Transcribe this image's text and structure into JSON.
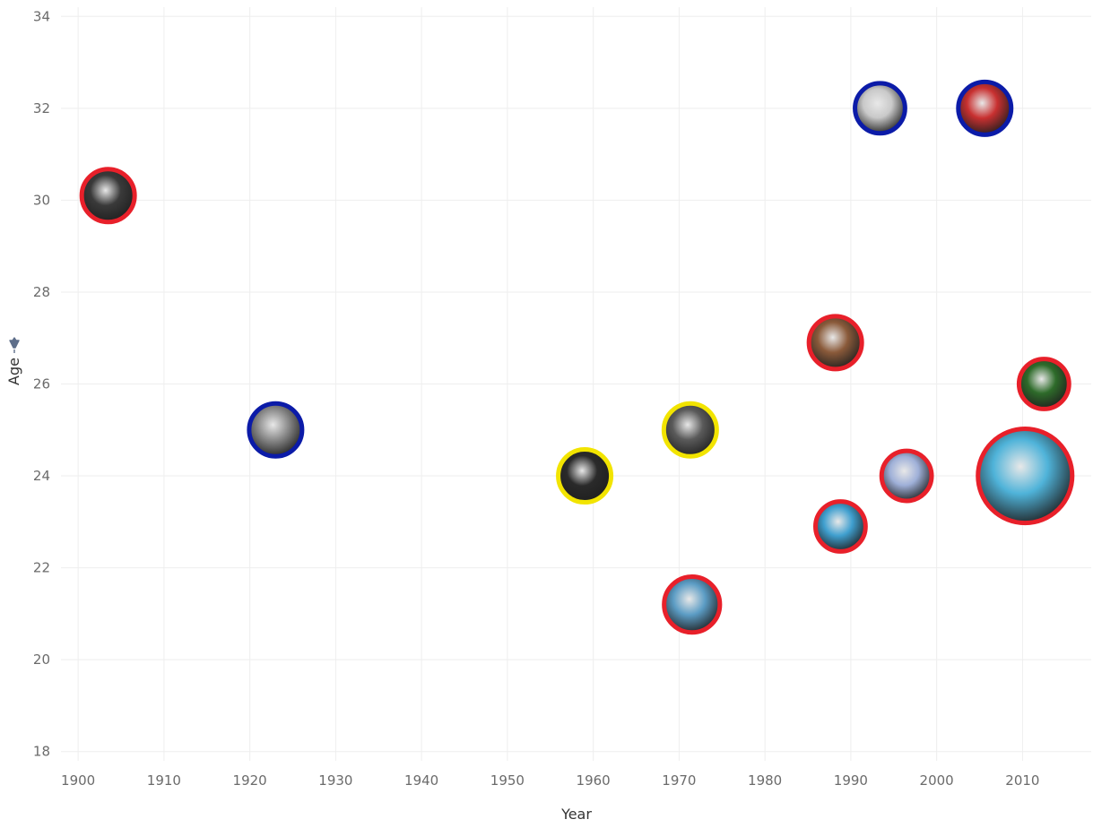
{
  "chart_data": {
    "type": "scatter",
    "xlabel": "Year",
    "ylabel": "Age",
    "xlim": [
      1898,
      2018
    ],
    "ylim": [
      17.8,
      34.2
    ],
    "x_ticks": [
      "1900",
      "1910",
      "1920",
      "1930",
      "1940",
      "1950",
      "1960",
      "1970",
      "1980",
      "1990",
      "2000",
      "2010"
    ],
    "y_ticks": [
      "18",
      "20",
      "22",
      "24",
      "26",
      "28",
      "30",
      "32",
      "34"
    ],
    "grid": true,
    "legend": "none",
    "points": [
      {
        "x": 1903.5,
        "y": 30.1,
        "size": 1.0,
        "ring_color": "#e8202a",
        "photo_tone": "#3a3a3a"
      },
      {
        "x": 1923.0,
        "y": 25.0,
        "size": 1.0,
        "ring_color": "#0b1ba8",
        "photo_tone": "#8c8c8c"
      },
      {
        "x": 1959.0,
        "y": 24.0,
        "size": 1.0,
        "ring_color": "#f2e400",
        "photo_tone": "#2a2a2a"
      },
      {
        "x": 1971.3,
        "y": 25.0,
        "size": 1.0,
        "ring_color": "#f2e400",
        "photo_tone": "#5a5a5a"
      },
      {
        "x": 1971.5,
        "y": 21.2,
        "size": 1.05,
        "ring_color": "#e8202a",
        "photo_tone": "#5b9cc4"
      },
      {
        "x": 1988.2,
        "y": 26.9,
        "size": 1.0,
        "ring_color": "#e8202a",
        "photo_tone": "#8a5a3a"
      },
      {
        "x": 1988.8,
        "y": 22.9,
        "size": 0.95,
        "ring_color": "#e8202a",
        "photo_tone": "#3f9fcf"
      },
      {
        "x": 1993.4,
        "y": 32.0,
        "size": 0.95,
        "ring_color": "#0b1ba8",
        "photo_tone": "#c9c9c9"
      },
      {
        "x": 1996.5,
        "y": 24.0,
        "size": 0.95,
        "ring_color": "#e8202a",
        "photo_tone": "#9fb0d8"
      },
      {
        "x": 2005.6,
        "y": 32.0,
        "size": 1.0,
        "ring_color": "#0b1ba8",
        "photo_tone": "#c83030"
      },
      {
        "x": 2010.3,
        "y": 24.0,
        "size": 1.72,
        "ring_color": "#e8202a",
        "photo_tone": "#4fb3d9"
      },
      {
        "x": 2012.5,
        "y": 26.0,
        "size": 0.95,
        "ring_color": "#e8202a",
        "photo_tone": "#2e6b2a"
      }
    ]
  },
  "colors": {
    "grid": "#eeeeee",
    "tick_label": "#6b6b6b",
    "axis_title": "#333333",
    "pin_icon": "#5e6e8a"
  },
  "icons": {
    "ylabel_pin": "pin-icon"
  }
}
